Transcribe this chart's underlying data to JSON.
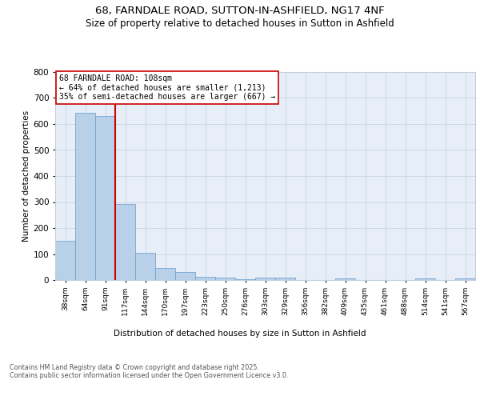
{
  "title1": "68, FARNDALE ROAD, SUTTON-IN-ASHFIELD, NG17 4NF",
  "title2": "Size of property relative to detached houses in Sutton in Ashfield",
  "xlabel": "Distribution of detached houses by size in Sutton in Ashfield",
  "ylabel": "Number of detached properties",
  "categories": [
    "38sqm",
    "64sqm",
    "91sqm",
    "117sqm",
    "144sqm",
    "170sqm",
    "197sqm",
    "223sqm",
    "250sqm",
    "276sqm",
    "303sqm",
    "329sqm",
    "356sqm",
    "382sqm",
    "409sqm",
    "435sqm",
    "461sqm",
    "488sqm",
    "514sqm",
    "541sqm",
    "567sqm"
  ],
  "values": [
    150,
    643,
    632,
    291,
    104,
    45,
    30,
    12,
    8,
    2,
    8,
    8,
    0,
    0,
    5,
    0,
    0,
    0,
    5,
    0,
    5
  ],
  "bar_color": "#b8d0e8",
  "bar_edge_color": "#6699cc",
  "vline_color": "#cc0000",
  "annotation_text": "68 FARNDALE ROAD: 108sqm\n← 64% of detached houses are smaller (1,213)\n35% of semi-detached houses are larger (667) →",
  "annotation_box_color": "#ffffff",
  "annotation_edge_color": "#cc0000",
  "ylim": [
    0,
    800
  ],
  "yticks": [
    0,
    100,
    200,
    300,
    400,
    500,
    600,
    700,
    800
  ],
  "background_color": "#e8eef8",
  "footer_text": "Contains HM Land Registry data © Crown copyright and database right 2025.\nContains public sector information licensed under the Open Government Licence v3.0.",
  "title1_fontsize": 9.5,
  "title2_fontsize": 8.5,
  "grid_color": "#c0cce0"
}
